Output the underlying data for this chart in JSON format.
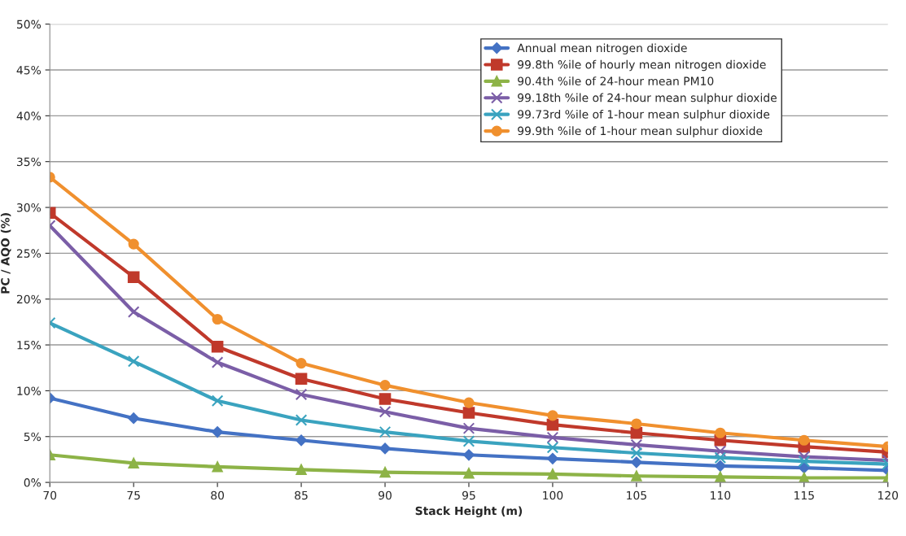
{
  "chart_data": {
    "type": "line",
    "xlabel": "Stack Height (m)",
    "ylabel": "PC / AQO (%)",
    "x": [
      70,
      75,
      80,
      85,
      90,
      95,
      100,
      105,
      110,
      115,
      120
    ],
    "xlim": [
      70,
      120
    ],
    "xticks": [
      70,
      75,
      80,
      85,
      90,
      95,
      100,
      105,
      110,
      115,
      120
    ],
    "ylim": [
      0,
      50
    ],
    "yticks": [
      {
        "value": 0,
        "label": "0%"
      },
      {
        "value": 5,
        "label": "5%"
      },
      {
        "value": 10,
        "label": "10%"
      },
      {
        "value": 15,
        "label": "15%"
      },
      {
        "value": 20,
        "label": "20%"
      },
      {
        "value": 25,
        "label": "25%"
      },
      {
        "value": 30,
        "label": "30%"
      },
      {
        "value": 35,
        "label": "35%"
      },
      {
        "value": 40,
        "label": "40%"
      },
      {
        "value": 45,
        "label": "45%"
      },
      {
        "value": 50,
        "label": "50%"
      }
    ],
    "grid": "y",
    "legend": "top right",
    "line_style": "solid",
    "series": [
      {
        "name": "Annual mean nitrogen dioxide",
        "color": "#4472c4",
        "marker": "diamond",
        "values": [
          9.2,
          7.0,
          5.5,
          4.6,
          3.7,
          3.0,
          2.6,
          2.2,
          1.8,
          1.6,
          1.3
        ]
      },
      {
        "name": "99.8th %ile of hourly mean nitrogen dioxide",
        "color": "#c0392b",
        "marker": "square",
        "values": [
          29.4,
          22.4,
          14.8,
          11.3,
          9.1,
          7.6,
          6.3,
          5.4,
          4.6,
          3.9,
          3.3
        ]
      },
      {
        "name": "90.4th %ile of 24-hour mean PM10",
        "color": "#8db347",
        "marker": "triangle",
        "values": [
          3.0,
          2.1,
          1.7,
          1.4,
          1.1,
          1.0,
          0.9,
          0.7,
          0.6,
          0.5,
          0.5
        ]
      },
      {
        "name": "99.18th %ile of 24-hour mean sulphur dioxide",
        "color": "#7b5ea7",
        "marker": "cross",
        "values": [
          28.0,
          18.6,
          13.1,
          9.6,
          7.7,
          5.9,
          4.9,
          4.1,
          3.4,
          2.8,
          2.4
        ]
      },
      {
        "name": "99.73rd %ile of 1-hour mean sulphur dioxide",
        "color": "#3aa3bf",
        "marker": "cross",
        "values": [
          17.4,
          13.2,
          8.9,
          6.8,
          5.5,
          4.5,
          3.8,
          3.2,
          2.7,
          2.3,
          2.0
        ]
      },
      {
        "name": "99.9th %ile of 1-hour mean sulphur dioxide",
        "color": "#f0902e",
        "marker": "circle",
        "values": [
          33.3,
          26.0,
          17.8,
          13.0,
          10.6,
          8.7,
          7.3,
          6.4,
          5.4,
          4.6,
          3.9
        ]
      }
    ]
  }
}
